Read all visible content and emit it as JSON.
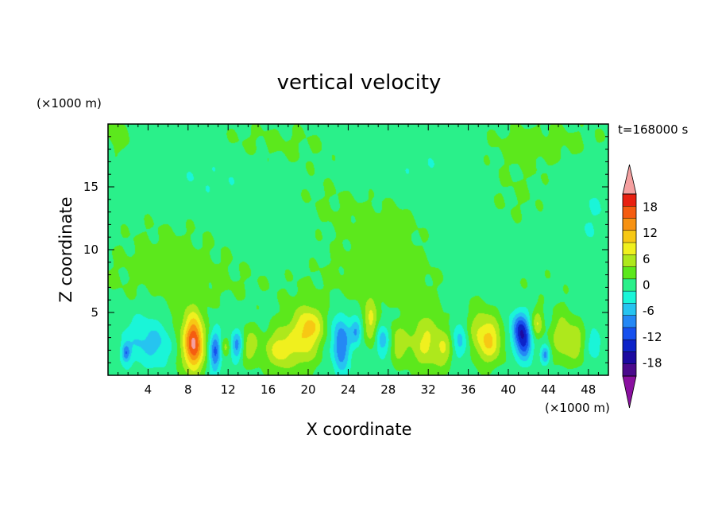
{
  "chart_data": {
    "type": "heatmap",
    "title": "vertical velocity",
    "xlabel": "X coordinate",
    "ylabel": "Z coordinate",
    "x_unit": "(×1000 m)",
    "y_unit": "(×1000 m)",
    "time_label": "t=168000 s",
    "xlim": [
      0,
      50
    ],
    "ylim": [
      0,
      20
    ],
    "x_ticks": [
      4,
      8,
      12,
      16,
      20,
      24,
      28,
      32,
      36,
      40,
      44,
      48
    ],
    "y_ticks": [
      5,
      10,
      15
    ],
    "colorbar": {
      "ticks": [
        18,
        12,
        6,
        0,
        -6,
        -12,
        -18
      ],
      "levels": [
        -21,
        -18,
        -15,
        -12,
        -9,
        -6,
        -3,
        0,
        3,
        6,
        9,
        12,
        15,
        18,
        21
      ],
      "colors": [
        "#4b0a8c",
        "#1c0aa0",
        "#0d23c8",
        "#1650ee",
        "#2488f5",
        "#26c4f0",
        "#1af5d8",
        "#2af08a",
        "#5ce81c",
        "#aee81c",
        "#f0f01e",
        "#f7c814",
        "#f79212",
        "#f55c10",
        "#e82010"
      ],
      "over_color": "#f5a0a0",
      "under_color": "#8a10a0"
    },
    "background_value": 1.5,
    "features": [
      {
        "x": 8.6,
        "z": 2.5,
        "sx": 0.65,
        "sz": 1.5,
        "w": 17
      },
      {
        "x": 7.9,
        "z": 2.9,
        "sx": 1.3,
        "sz": 2.0,
        "w": 4
      },
      {
        "x": 10.7,
        "z": 1.9,
        "sx": 0.4,
        "sz": 1.2,
        "w": -11
      },
      {
        "x": 12.9,
        "z": 2.4,
        "sx": 0.4,
        "sz": 0.8,
        "w": -10
      },
      {
        "x": 14.2,
        "z": 2.3,
        "sx": 0.8,
        "sz": 1.1,
        "w": 6
      },
      {
        "x": 11.7,
        "z": 2.2,
        "sx": 0.3,
        "sz": 0.5,
        "w": 5
      },
      {
        "x": 17.0,
        "z": 2.0,
        "sx": 0.9,
        "sz": 1.2,
        "w": 8
      },
      {
        "x": 19.4,
        "z": 2.9,
        "sx": 1.2,
        "sz": 1.7,
        "w": 9
      },
      {
        "x": 20.5,
        "z": 4.0,
        "sx": 0.8,
        "sz": 1.0,
        "w": 6
      },
      {
        "x": 23.3,
        "z": 2.5,
        "sx": 0.6,
        "sz": 1.5,
        "w": -11
      },
      {
        "x": 24.8,
        "z": 3.5,
        "sx": 0.4,
        "sz": 0.7,
        "w": -8
      },
      {
        "x": 26.3,
        "z": 4.2,
        "sx": 0.5,
        "sz": 1.3,
        "w": 8
      },
      {
        "x": 27.4,
        "z": 2.8,
        "sx": 0.5,
        "sz": 0.9,
        "w": -7
      },
      {
        "x": 29.0,
        "z": 2.5,
        "sx": 0.6,
        "sz": 1.1,
        "w": 6
      },
      {
        "x": 31.8,
        "z": 2.6,
        "sx": 1.3,
        "sz": 1.6,
        "w": 8
      },
      {
        "x": 33.7,
        "z": 2.0,
        "sx": 0.6,
        "sz": 1.0,
        "w": 5
      },
      {
        "x": 37.0,
        "z": 3.4,
        "sx": 0.9,
        "sz": 1.5,
        "w": 6
      },
      {
        "x": 38.3,
        "z": 2.7,
        "sx": 0.8,
        "sz": 1.3,
        "w": 9
      },
      {
        "x": 35.2,
        "z": 2.7,
        "sx": 0.6,
        "sz": 1.0,
        "w": -6
      },
      {
        "x": 41.2,
        "z": 3.6,
        "sx": 0.6,
        "sz": 1.0,
        "w": -14
      },
      {
        "x": 41.7,
        "z": 2.3,
        "sx": 0.5,
        "sz": 0.9,
        "w": -9
      },
      {
        "x": 42.9,
        "z": 4.1,
        "sx": 0.4,
        "sz": 0.8,
        "w": 7
      },
      {
        "x": 45.4,
        "z": 3.0,
        "sx": 0.8,
        "sz": 1.4,
        "w": 7
      },
      {
        "x": 46.9,
        "z": 2.5,
        "sx": 0.6,
        "sz": 1.2,
        "w": 5
      },
      {
        "x": 1.8,
        "z": 1.8,
        "sx": 0.3,
        "sz": 0.5,
        "w": -9
      },
      {
        "x": 3.6,
        "z": 2.8,
        "sx": 1.5,
        "sz": 1.4,
        "w": -5
      },
      {
        "x": 5.6,
        "z": 2.3,
        "sx": 0.9,
        "sz": 1.1,
        "w": -3
      },
      {
        "x": 43.7,
        "z": 1.6,
        "sx": 0.3,
        "sz": 0.5,
        "w": -9
      },
      {
        "x": 48.6,
        "z": 2.5,
        "sx": 0.5,
        "sz": 0.8,
        "w": -4
      }
    ],
    "background_patches": [
      {
        "x": 0.8,
        "z": 19.0,
        "sx": 1.2,
        "sz": 1.2,
        "w": 2.4
      },
      {
        "x": 15.0,
        "z": 18.5,
        "sx": 6.0,
        "sz": 1.4,
        "w": 2.0
      },
      {
        "x": 44.0,
        "z": 18.5,
        "sx": 6.0,
        "sz": 1.5,
        "w": 2.2
      },
      {
        "x": 22.0,
        "z": 13.0,
        "sx": 4.0,
        "sz": 3.0,
        "w": 2.2
      },
      {
        "x": 29.0,
        "z": 11.0,
        "sx": 3.0,
        "sz": 3.5,
        "w": 2.0
      },
      {
        "x": 40.0,
        "z": 14.0,
        "sx": 4.0,
        "sz": 2.5,
        "w": 1.9
      },
      {
        "x": 6.0,
        "z": 10.0,
        "sx": 5.0,
        "sz": 3.0,
        "w": 1.8
      },
      {
        "x": 25.0,
        "z": 7.5,
        "sx": 20.0,
        "sz": 1.8,
        "w": 1.7
      },
      {
        "x": 10.0,
        "z": 16.0,
        "sx": 4.0,
        "sz": 2.0,
        "w": -1.6
      },
      {
        "x": 30.0,
        "z": 16.5,
        "sx": 5.0,
        "sz": 2.0,
        "w": -1.8
      },
      {
        "x": 36.0,
        "z": 10.0,
        "sx": 3.0,
        "sz": 3.0,
        "w": -1.7
      },
      {
        "x": 18.0,
        "z": 10.5,
        "sx": 3.5,
        "sz": 2.5,
        "w": -1.5
      },
      {
        "x": 48.0,
        "z": 13.0,
        "sx": 2.5,
        "sz": 3.0,
        "w": -1.6
      }
    ]
  }
}
